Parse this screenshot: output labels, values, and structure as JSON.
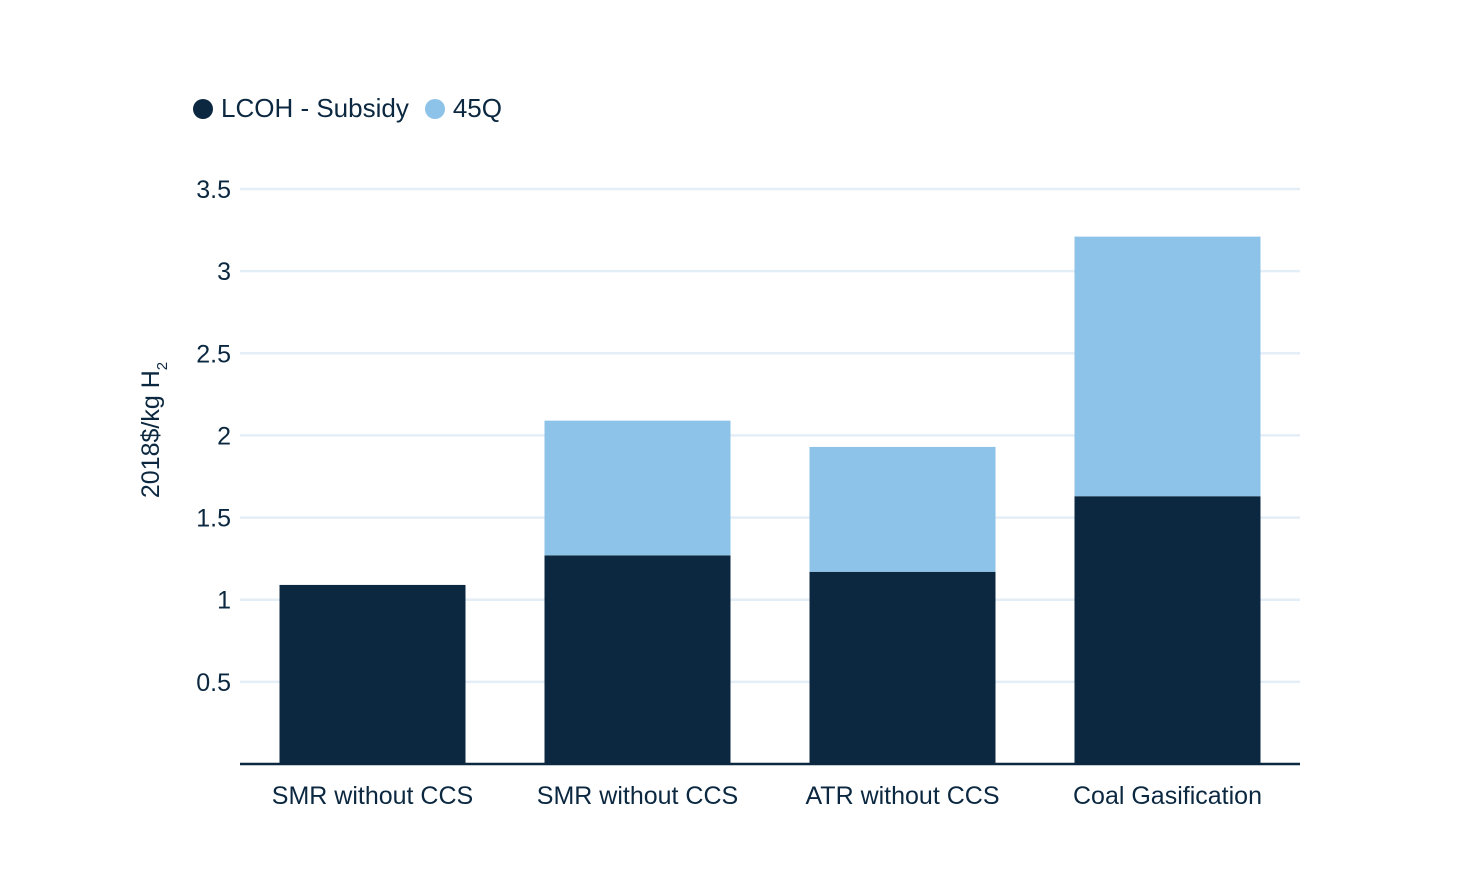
{
  "colors": {
    "lcoh": "#0b2840",
    "subsidy": "#8dc2e9",
    "grid": "#e4eef6",
    "axis": "#0b2840"
  },
  "chart_data": {
    "type": "bar",
    "stacked": true,
    "categories": [
      "SMR without CCS",
      "SMR without CCS",
      "ATR without CCS",
      "Coal Gasification"
    ],
    "series": [
      {
        "name": "LCOH - Subsidy",
        "values": [
          1.09,
          1.27,
          1.17,
          1.63
        ]
      },
      {
        "name": "45Q",
        "values": [
          0,
          0.82,
          0.76,
          1.58
        ]
      }
    ],
    "ylabel": "2018$/kg H",
    "ylabel_subscript": "2",
    "ylim": [
      0,
      3.5
    ],
    "yticks": [
      0.5,
      1,
      1.5,
      2,
      2.5,
      3,
      3.5
    ],
    "ytick_labels": [
      "0.5",
      "1",
      "1.5",
      "2",
      "2.5",
      "3",
      "3.5"
    ],
    "grid": true,
    "legend_position": "top-left"
  }
}
